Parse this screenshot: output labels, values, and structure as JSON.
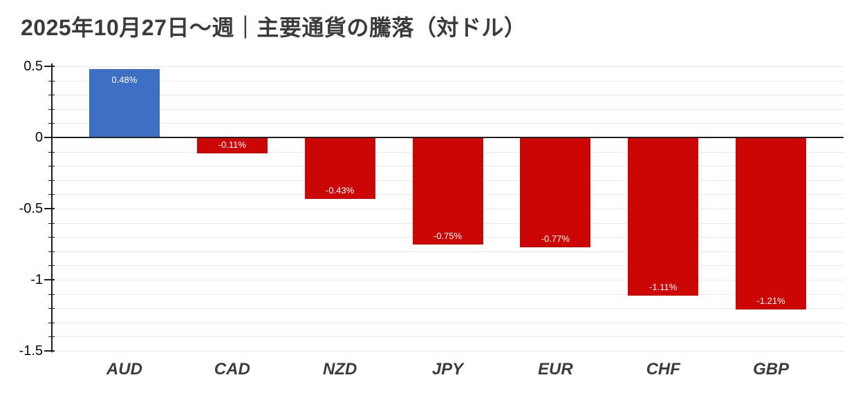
{
  "chart_data": {
    "type": "bar",
    "title": "2025年10月27日～週｜主要通貨の騰落（対ドル）",
    "categories": [
      "AUD",
      "CAD",
      "NZD",
      "JPY",
      "EUR",
      "CHF",
      "GBP"
    ],
    "values": [
      0.48,
      -0.11,
      -0.43,
      -0.75,
      -0.77,
      -1.11,
      -1.21
    ],
    "bar_labels": [
      "0.48%",
      "-0.11%",
      "-0.43%",
      "-0.75%",
      "-0.77%",
      "-1.11%",
      "-1.21%"
    ],
    "xlabel": "",
    "ylabel": "",
    "ylim": [
      -1.5,
      0.5
    ],
    "ytick_values": [
      0.5,
      0,
      -0.5,
      -1,
      -1.5
    ],
    "ytick_labels": [
      "0.5",
      "0",
      "-0.5",
      "-1",
      "-1.5"
    ],
    "minor_gridline_step": 0.1,
    "grid": true,
    "legend": "none",
    "colors": {
      "positive_bar": "#3d6fc2",
      "negative_bar": "#cc0505",
      "title_text": "#3b3b3b",
      "axis_label": "#3c3c3c",
      "bar_label_text": "#ffffff"
    }
  }
}
